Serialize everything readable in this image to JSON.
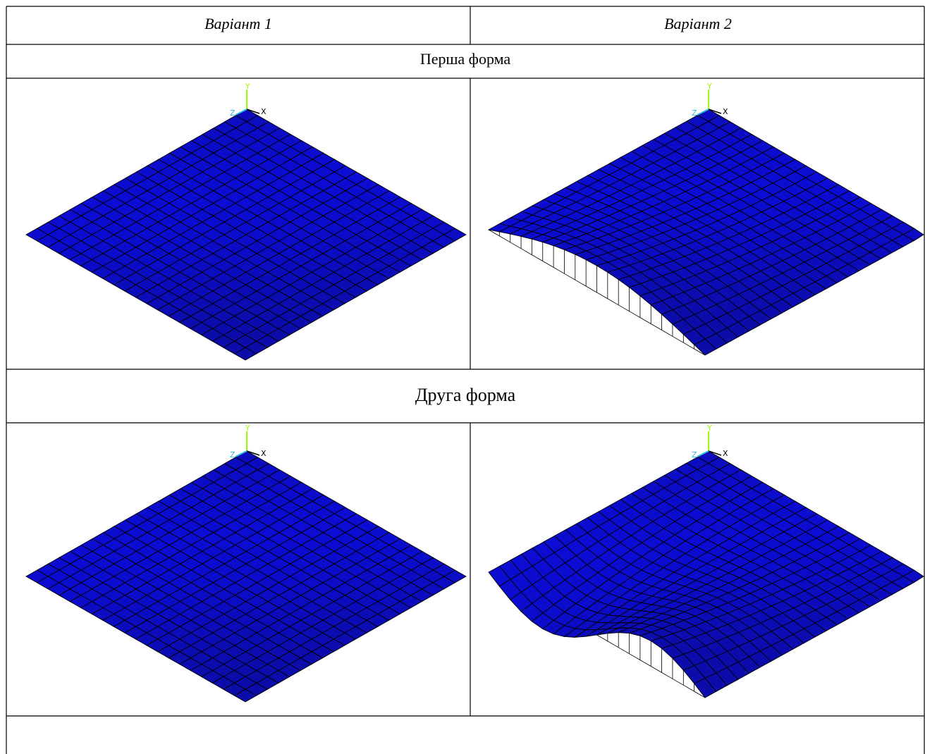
{
  "header": {
    "columns": [
      "Варіант 1",
      "Варіант 2"
    ]
  },
  "sections": [
    {
      "title": "Перша форма"
    },
    {
      "title": "Друга форма"
    }
  ],
  "axis_labels": {
    "x": "X",
    "y": "Y",
    "z": "Z"
  }
}
